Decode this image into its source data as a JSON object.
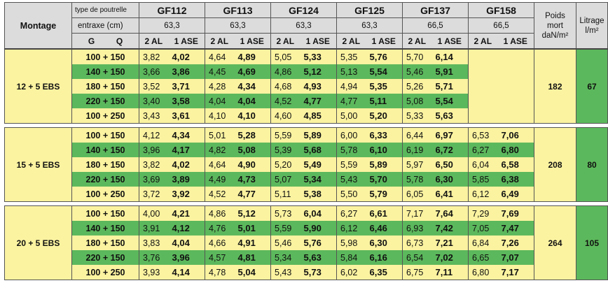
{
  "header": {
    "montage": "Montage",
    "type_label": "type de poutrelle",
    "entraxe_label": "entraxe (cm)",
    "g_label": "G",
    "q_label": "Q",
    "poids_mort": [
      "Poids",
      "mort",
      "daN/m²"
    ],
    "litrage": [
      "Litrage",
      "l/m²"
    ],
    "col_2al": "2 AL",
    "col_1ase": "1 ASE",
    "beams": [
      {
        "name": "GF112",
        "entraxe": "63,3"
      },
      {
        "name": "GF113",
        "entraxe": "63,3"
      },
      {
        "name": "GF124",
        "entraxe": "63,3"
      },
      {
        "name": "GF125",
        "entraxe": "63,3"
      },
      {
        "name": "GF137",
        "entraxe": "66,5"
      },
      {
        "name": "GF158",
        "entraxe": "66,5"
      }
    ]
  },
  "groups": [
    {
      "montage": "12 + 5 EBS",
      "poids": "182",
      "litrage": "67",
      "rows": [
        {
          "gq": "100 + 150",
          "vals": [
            [
              "3,82",
              "4,02"
            ],
            [
              "4,64",
              "4,89"
            ],
            [
              "5,05",
              "5,33"
            ],
            [
              "5,35",
              "5,76"
            ],
            [
              "5,70",
              "6,14"
            ],
            [
              "",
              ""
            ]
          ]
        },
        {
          "gq": "140 + 150",
          "vals": [
            [
              "3,66",
              "3,86"
            ],
            [
              "4,45",
              "4,69"
            ],
            [
              "4,86",
              "5,12"
            ],
            [
              "5,13",
              "5,54"
            ],
            [
              "5,46",
              "5,91"
            ],
            [
              "",
              ""
            ]
          ]
        },
        {
          "gq": "180 + 150",
          "vals": [
            [
              "3,52",
              "3,71"
            ],
            [
              "4,28",
              "4,34"
            ],
            [
              "4,68",
              "4,93"
            ],
            [
              "4,94",
              "5,35"
            ],
            [
              "5,26",
              "5,71"
            ],
            [
              "",
              ""
            ]
          ]
        },
        {
          "gq": "220 + 150",
          "vals": [
            [
              "3,40",
              "3,58"
            ],
            [
              "4,04",
              "4,04"
            ],
            [
              "4,52",
              "4,77"
            ],
            [
              "4,77",
              "5,11"
            ],
            [
              "5,08",
              "5,54"
            ],
            [
              "",
              ""
            ]
          ]
        },
        {
          "gq": "100 + 250",
          "vals": [
            [
              "3,43",
              "3,61"
            ],
            [
              "4,10",
              "4,10"
            ],
            [
              "4,60",
              "4,85"
            ],
            [
              "5,00",
              "5,20"
            ],
            [
              "5,33",
              "5,63"
            ],
            [
              "",
              ""
            ]
          ]
        }
      ]
    },
    {
      "montage": "15 + 5 EBS",
      "poids": "208",
      "litrage": "80",
      "rows": [
        {
          "gq": "100 + 150",
          "vals": [
            [
              "4,12",
              "4,34"
            ],
            [
              "5,01",
              "5,28"
            ],
            [
              "5,59",
              "5,89"
            ],
            [
              "6,00",
              "6,33"
            ],
            [
              "6,44",
              "6,97"
            ],
            [
              "6,53",
              "7,06"
            ]
          ]
        },
        {
          "gq": "140 + 150",
          "vals": [
            [
              "3,96",
              "4,17"
            ],
            [
              "4,82",
              "5,08"
            ],
            [
              "5,39",
              "5,68"
            ],
            [
              "5,78",
              "6,10"
            ],
            [
              "6,19",
              "6,72"
            ],
            [
              "6,27",
              "6,80"
            ]
          ]
        },
        {
          "gq": "180 + 150",
          "vals": [
            [
              "3,82",
              "4,02"
            ],
            [
              "4,64",
              "4,90"
            ],
            [
              "5,20",
              "5,49"
            ],
            [
              "5,59",
              "5,89"
            ],
            [
              "5,97",
              "6,50"
            ],
            [
              "6,04",
              "6,58"
            ]
          ]
        },
        {
          "gq": "220 + 150",
          "vals": [
            [
              "3,69",
              "3,89"
            ],
            [
              "4,49",
              "4,73"
            ],
            [
              "5,07",
              "5,34"
            ],
            [
              "5,43",
              "5,70"
            ],
            [
              "5,78",
              "6,30"
            ],
            [
              "5,85",
              "6,38"
            ]
          ]
        },
        {
          "gq": "100 + 250",
          "vals": [
            [
              "3,72",
              "3,92"
            ],
            [
              "4,52",
              "4,77"
            ],
            [
              "5,11",
              "5,38"
            ],
            [
              "5,50",
              "5,79"
            ],
            [
              "6,05",
              "6,41"
            ],
            [
              "6,12",
              "6,49"
            ]
          ]
        }
      ]
    },
    {
      "montage": "20 + 5 EBS",
      "poids": "264",
      "litrage": "105",
      "rows": [
        {
          "gq": "100 + 150",
          "vals": [
            [
              "4,00",
              "4,21"
            ],
            [
              "4,86",
              "5,12"
            ],
            [
              "5,73",
              "6,04"
            ],
            [
              "6,27",
              "6,61"
            ],
            [
              "7,17",
              "7,64"
            ],
            [
              "7,29",
              "7,69"
            ]
          ]
        },
        {
          "gq": "140 + 150",
          "vals": [
            [
              "3,91",
              "4,12"
            ],
            [
              "4,76",
              "5,01"
            ],
            [
              "5,59",
              "5,90"
            ],
            [
              "6,12",
              "6,46"
            ],
            [
              "6,93",
              "7,42"
            ],
            [
              "7,05",
              "7,47"
            ]
          ]
        },
        {
          "gq": "180 + 150",
          "vals": [
            [
              "3,83",
              "4,04"
            ],
            [
              "4,66",
              "4,91"
            ],
            [
              "5,46",
              "5,76"
            ],
            [
              "5,98",
              "6,30"
            ],
            [
              "6,73",
              "7,21"
            ],
            [
              "6,84",
              "7,26"
            ]
          ]
        },
        {
          "gq": "220 + 150",
          "vals": [
            [
              "3,76",
              "3,96"
            ],
            [
              "4,57",
              "4,81"
            ],
            [
              "5,34",
              "5,63"
            ],
            [
              "5,84",
              "6,16"
            ],
            [
              "6,54",
              "7,02"
            ],
            [
              "6,65",
              "7,07"
            ]
          ]
        },
        {
          "gq": "100 + 250",
          "vals": [
            [
              "3,93",
              "4,14"
            ],
            [
              "4,78",
              "5,04"
            ],
            [
              "5,43",
              "5,73"
            ],
            [
              "6,02",
              "6,35"
            ],
            [
              "6,75",
              "7,11"
            ],
            [
              "6,80",
              "7,17"
            ]
          ]
        }
      ]
    }
  ],
  "colors": {
    "yellow": "#fbf3a0",
    "green": "#5cb85c",
    "header": "#dcdcdc"
  }
}
